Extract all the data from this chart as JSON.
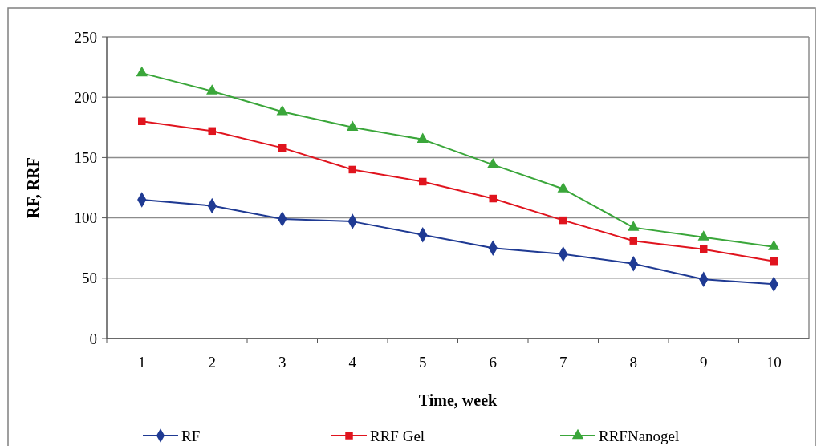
{
  "chart_data": {
    "type": "line",
    "xlabel": "Time, week",
    "ylabel": "RF, RRF",
    "categories": [
      "1",
      "2",
      "3",
      "4",
      "5",
      "6",
      "7",
      "8",
      "9",
      "10"
    ],
    "ylim": [
      0,
      250
    ],
    "yticks": [
      0,
      50,
      100,
      150,
      200,
      250
    ],
    "grid": "y",
    "legend": "bottom",
    "series": [
      {
        "name": "RF",
        "color": "#1f3a93",
        "marker": "diamond",
        "values": [
          115,
          110,
          99,
          97,
          86,
          75,
          70,
          62,
          49,
          45
        ]
      },
      {
        "name": "RRF Gel",
        "color": "#e0141e",
        "marker": "square",
        "values": [
          180,
          172,
          158,
          140,
          130,
          116,
          98,
          81,
          74,
          64
        ]
      },
      {
        "name": "RRFNanogel",
        "color": "#3aa63a",
        "marker": "triangle",
        "values": [
          220,
          205,
          188,
          175,
          165,
          144,
          124,
          92,
          84,
          76
        ]
      }
    ]
  }
}
